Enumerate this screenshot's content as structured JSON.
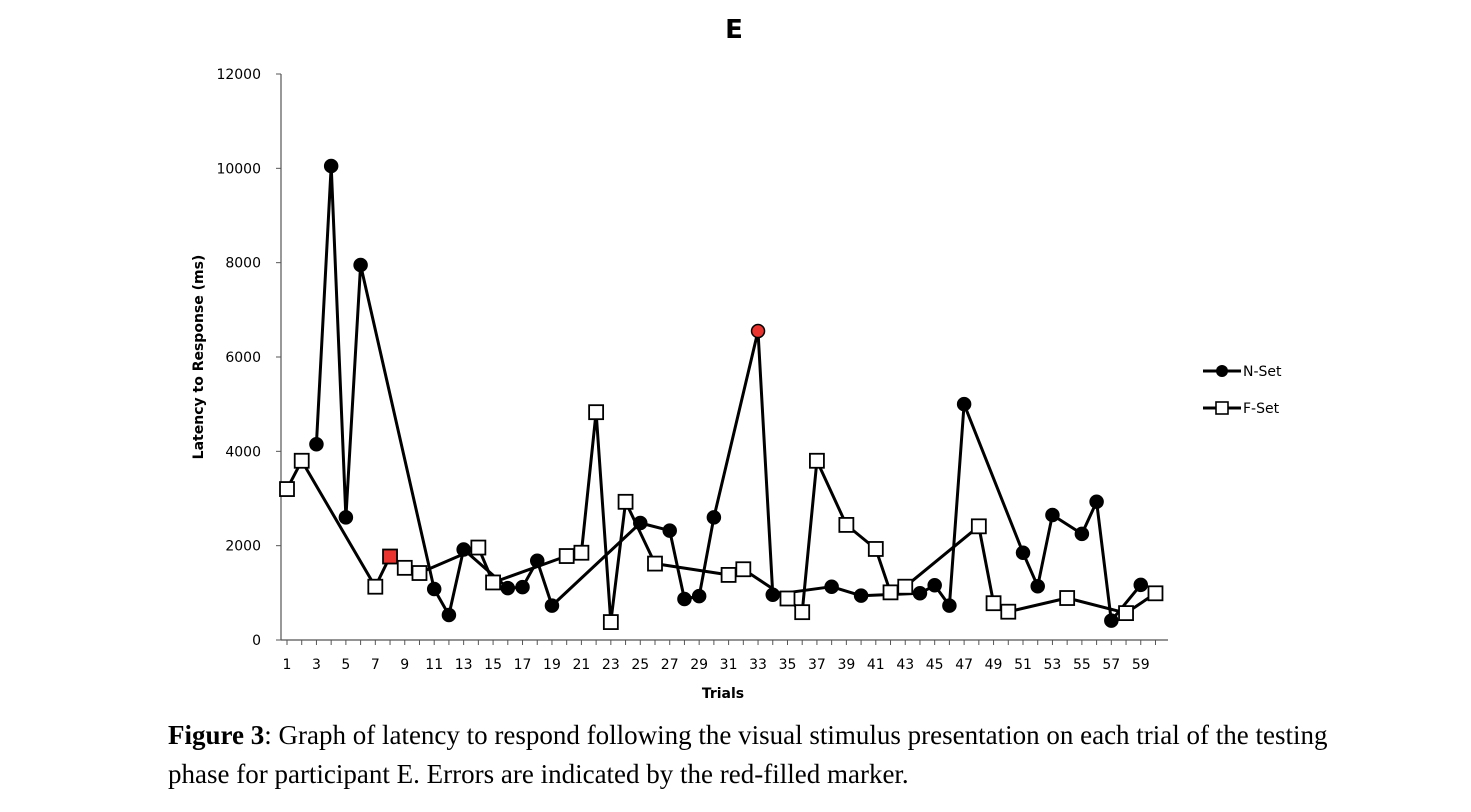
{
  "caption": {
    "label": "Figure 3",
    "text": ": Graph of latency to respond following the visual stimulus presentation on each trial of the testing phase for participant E. Errors are indicated by the red-filled marker."
  },
  "chart_data": {
    "type": "line",
    "title": "E",
    "xlabel": "Trials",
    "ylabel": "Latency to Response (ms)",
    "ylim": [
      0,
      12000
    ],
    "xlim": [
      1,
      60
    ],
    "yticks": [
      0,
      2000,
      4000,
      6000,
      8000,
      10000,
      12000
    ],
    "xticks": [
      1,
      3,
      5,
      7,
      9,
      11,
      13,
      15,
      17,
      19,
      21,
      23,
      25,
      27,
      29,
      31,
      33,
      35,
      37,
      39,
      41,
      43,
      45,
      47,
      49,
      51,
      53,
      55,
      57,
      59
    ],
    "grid": false,
    "legend_position": "right",
    "error_color": "#e8332e",
    "series": [
      {
        "name": "N-Set",
        "marker": "filled-circle",
        "points": [
          {
            "x": 3,
            "y": 4150
          },
          {
            "x": 4,
            "y": 10050
          },
          {
            "x": 5,
            "y": 2600
          },
          {
            "x": 6,
            "y": 7950
          },
          {
            "x": 11,
            "y": 1080
          },
          {
            "x": 12,
            "y": 530
          },
          {
            "x": 13,
            "y": 1920
          },
          {
            "x": 16,
            "y": 1100
          },
          {
            "x": 17,
            "y": 1120
          },
          {
            "x": 18,
            "y": 1680
          },
          {
            "x": 19,
            "y": 730
          },
          {
            "x": 25,
            "y": 2480
          },
          {
            "x": 27,
            "y": 2320
          },
          {
            "x": 28,
            "y": 870
          },
          {
            "x": 29,
            "y": 930
          },
          {
            "x": 30,
            "y": 2600
          },
          {
            "x": 33,
            "y": 6550,
            "error": true
          },
          {
            "x": 34,
            "y": 960
          },
          {
            "x": 38,
            "y": 1130
          },
          {
            "x": 40,
            "y": 940
          },
          {
            "x": 44,
            "y": 990
          },
          {
            "x": 45,
            "y": 1160
          },
          {
            "x": 46,
            "y": 730
          },
          {
            "x": 47,
            "y": 5000
          },
          {
            "x": 51,
            "y": 1850
          },
          {
            "x": 52,
            "y": 1140
          },
          {
            "x": 53,
            "y": 2650
          },
          {
            "x": 55,
            "y": 2250
          },
          {
            "x": 56,
            "y": 2930
          },
          {
            "x": 57,
            "y": 410
          },
          {
            "x": 59,
            "y": 1170
          }
        ]
      },
      {
        "name": "F-Set",
        "marker": "open-square",
        "points": [
          {
            "x": 1,
            "y": 3200
          },
          {
            "x": 2,
            "y": 3800
          },
          {
            "x": 7,
            "y": 1130
          },
          {
            "x": 8,
            "y": 1770,
            "error": true
          },
          {
            "x": 9,
            "y": 1530
          },
          {
            "x": 10,
            "y": 1420
          },
          {
            "x": 14,
            "y": 1960
          },
          {
            "x": 15,
            "y": 1220
          },
          {
            "x": 20,
            "y": 1780
          },
          {
            "x": 21,
            "y": 1850
          },
          {
            "x": 22,
            "y": 4830
          },
          {
            "x": 23,
            "y": 380
          },
          {
            "x": 24,
            "y": 2930
          },
          {
            "x": 26,
            "y": 1620
          },
          {
            "x": 31,
            "y": 1380
          },
          {
            "x": 32,
            "y": 1500
          },
          {
            "x": 35,
            "y": 880
          },
          {
            "x": 36,
            "y": 590
          },
          {
            "x": 37,
            "y": 3800
          },
          {
            "x": 39,
            "y": 2440
          },
          {
            "x": 41,
            "y": 1930
          },
          {
            "x": 42,
            "y": 1010
          },
          {
            "x": 43,
            "y": 1130
          },
          {
            "x": 48,
            "y": 2410
          },
          {
            "x": 49,
            "y": 780
          },
          {
            "x": 50,
            "y": 600
          },
          {
            "x": 54,
            "y": 890
          },
          {
            "x": 58,
            "y": 570
          },
          {
            "x": 60,
            "y": 990
          }
        ]
      }
    ]
  }
}
